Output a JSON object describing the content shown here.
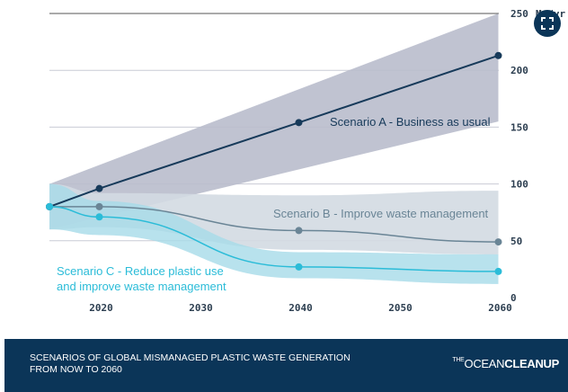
{
  "chart_data": {
    "type": "line",
    "title": "SCENARIOS OF GLOBAL MISMANAGED PLASTIC WASTE GENERATION FROM NOW TO 2060",
    "xlabel": "",
    "ylabel": "Mt/yr",
    "xlim": [
      2015,
      2061
    ],
    "ylim": [
      0,
      250
    ],
    "xticks": [
      2020,
      2030,
      2040,
      2050,
      2060
    ],
    "yticks": [
      0,
      50,
      100,
      150,
      200,
      250
    ],
    "grid": true,
    "series": [
      {
        "name": "Scenario A - Business as usual",
        "color": "#173a5a",
        "band_color": "#b9bccc",
        "x": [
          2015,
          2020,
          2040,
          2060
        ],
        "values": [
          80,
          96,
          154,
          213
        ],
        "band_x": [
          2015,
          2060
        ],
        "band_upper": [
          100,
          250
        ],
        "band_lower": [
          60,
          155
        ]
      },
      {
        "name": "Scenario B - Improve waste management",
        "color": "#6a8596",
        "band_color": "#d3dae2",
        "x": [
          2015,
          2020,
          2040,
          2060
        ],
        "values": [
          80,
          80,
          59,
          49
        ],
        "band_x": [
          2015,
          2020,
          2040,
          2060
        ],
        "band_upper": [
          100,
          92,
          90,
          94
        ],
        "band_lower": [
          60,
          62,
          42,
          38
        ]
      },
      {
        "name": "Scenario C - Reduce plastic use and improve waste management",
        "color": "#2bbcd8",
        "band_color": "#a6dbe8",
        "x": [
          2015,
          2020,
          2040,
          2060
        ],
        "values": [
          80,
          71,
          27,
          23
        ],
        "band_x": [
          2015,
          2020,
          2040,
          2060
        ],
        "band_upper": [
          100,
          85,
          40,
          38
        ],
        "band_lower": [
          60,
          55,
          17,
          12
        ]
      }
    ]
  },
  "labels": {
    "a": "Scenario A - Business as usual",
    "b": "Scenario B - Improve waste management",
    "c1": "Scenario C - Reduce plastic use",
    "c2": "and improve waste management"
  },
  "footer": {
    "title1": "SCENARIOS OF GLOBAL MISMANAGED PLASTIC WASTE GENERATION",
    "title2": "FROM NOW TO 2060",
    "logo_the": "THE",
    "logo_ocean": "OCEAN",
    "logo_cleanup": "CLEANUP"
  },
  "unit": "Mt/yr"
}
